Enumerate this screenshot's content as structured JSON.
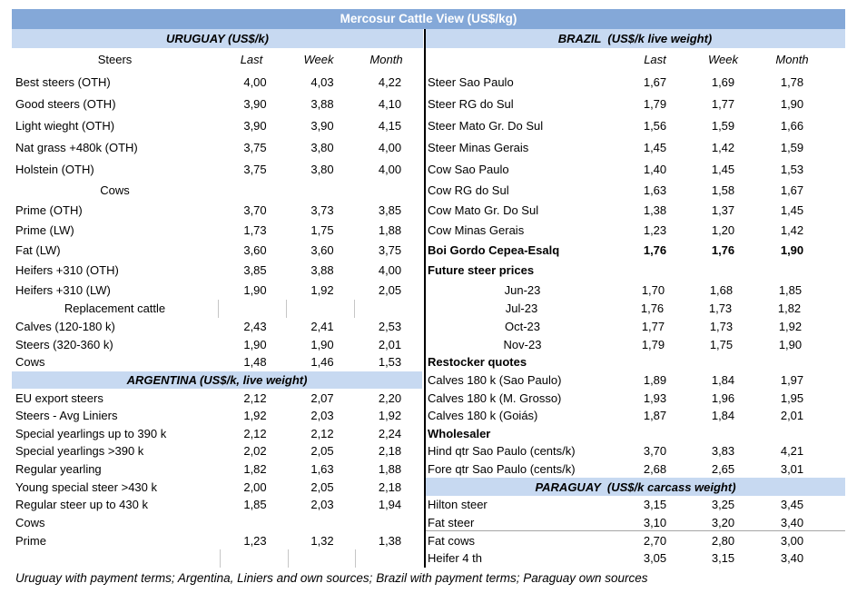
{
  "title": "Mercosur Cattle View (US$/kg)",
  "colors": {
    "title_bar_bg": "#84A8D8",
    "band_bg": "#C7D9F1",
    "divider": "#000000",
    "text": "#000000"
  },
  "left": {
    "header": "URUGUAY (US$/k)"
  },
  "right": {
    "header": "BRAZIL  (US$/k live weight)"
  },
  "col_headers": {
    "last": "Last",
    "week": "Week",
    "month": "Month"
  },
  "footer": "Uruguay with payment terms; Argentina, Liniers and own sources; Brazil with payment terms; Paraguay own sources",
  "rows": [
    {
      "left": {
        "label": "Steers",
        "align": "center",
        "head": true,
        "values": [
          "Last",
          "Week",
          "Month"
        ]
      },
      "right": {
        "label": "",
        "head": true,
        "values": [
          "Last",
          "Week",
          "Month"
        ]
      }
    },
    {
      "left": {
        "label": "Best steers (OTH)",
        "values": [
          "4,00",
          "4,03",
          "4,22"
        ]
      },
      "right": {
        "label": "Steer Sao Paulo",
        "values": [
          "1,67",
          "1,69",
          "1,78"
        ]
      }
    },
    {
      "left": {
        "label": "Good steers (OTH)",
        "values": [
          "3,90",
          "3,88",
          "4,10"
        ]
      },
      "right": {
        "label": "Steer RG do Sul",
        "values": [
          "1,79",
          "1,77",
          "1,90"
        ]
      }
    },
    {
      "left": {
        "label": "Light wieght (OTH)",
        "values": [
          "3,90",
          "3,90",
          "4,15"
        ]
      },
      "right": {
        "label": "Steer Mato Gr. Do Sul",
        "values": [
          "1,56",
          "1,59",
          "1,66"
        ]
      }
    },
    {
      "left": {
        "label": "Nat grass +480k (OTH)",
        "values": [
          "3,75",
          "3,80",
          "4,00"
        ]
      },
      "right": {
        "label": "Steer Minas Gerais",
        "values": [
          "1,45",
          "1,42",
          "1,59"
        ]
      }
    },
    {
      "left": {
        "label": "Holstein (OTH)",
        "values": [
          "3,75",
          "3,80",
          "4,00"
        ]
      },
      "right": {
        "label": "Cow Sao Paulo",
        "values": [
          "1,40",
          "1,45",
          "1,53"
        ]
      }
    },
    {
      "left": {
        "label": "Cows",
        "align": "center",
        "values": [
          "",
          "",
          ""
        ]
      },
      "right": {
        "label": "Cow RG do Sul",
        "values": [
          "1,63",
          "1,58",
          "1,67"
        ]
      }
    },
    {
      "left": {
        "label": "Prime (OTH)",
        "values": [
          "3,70",
          "3,73",
          "3,85"
        ]
      },
      "right": {
        "label": "Cow Mato Gr. Do Sul",
        "values": [
          "1,38",
          "1,37",
          "1,45"
        ]
      }
    },
    {
      "left": {
        "label": "Prime (LW)",
        "values": [
          "1,73",
          "1,75",
          "1,88"
        ]
      },
      "right": {
        "label": "Cow Minas Gerais",
        "values": [
          "1,23",
          "1,20",
          "1,42"
        ]
      }
    },
    {
      "left": {
        "label": "Fat (LW)",
        "values": [
          "3,60",
          "3,60",
          "3,75"
        ]
      },
      "right": {
        "label": "Boi Gordo Cepea-Esalq",
        "bold": true,
        "values": [
          "1,76",
          "1,76",
          "1,90"
        ]
      }
    },
    {
      "left": {
        "label": "Heifers +310 (OTH)",
        "values": [
          "3,85",
          "3,88",
          "4,00"
        ]
      },
      "right": {
        "label": "Future steer prices",
        "bold": true,
        "values": [
          "",
          "",
          ""
        ]
      }
    },
    {
      "left": {
        "label": "Heifers +310 (LW)",
        "values": [
          "1,90",
          "1,92",
          "2,05"
        ]
      },
      "right": {
        "label": "Jun-23",
        "align": "center",
        "values": [
          "1,70",
          "1,68",
          "1,85"
        ]
      }
    },
    {
      "left": {
        "label": "Replacement cattle",
        "align": "center",
        "ticks": true,
        "values": [
          "",
          "",
          ""
        ]
      },
      "right": {
        "label": "Jul-23",
        "align": "center",
        "values": [
          "1,76",
          "1,73",
          "1,82"
        ]
      }
    },
    {
      "left": {
        "label": "Calves (120-180 k)",
        "values": [
          "2,43",
          "2,41",
          "2,53"
        ]
      },
      "right": {
        "label": "Oct-23",
        "align": "center",
        "values": [
          "1,77",
          "1,73",
          "1,92"
        ]
      }
    },
    {
      "left": {
        "label": "Steers (320-360 k)",
        "values": [
          "1,90",
          "1,90",
          "2,01"
        ]
      },
      "right": {
        "label": "Nov-23",
        "align": "center",
        "values": [
          "1,79",
          "1,75",
          "1,90"
        ]
      }
    },
    {
      "left": {
        "label": "Cows",
        "values": [
          "1,48",
          "1,46",
          "1,53"
        ]
      },
      "right": {
        "label": "Restocker quotes",
        "bold": true,
        "values": [
          "",
          "",
          ""
        ]
      }
    },
    {
      "left": {
        "band": "ARGENTINA (US$/k, live weight)"
      },
      "right": {
        "label": "Calves 180 k (Sao Paulo)",
        "values": [
          "1,89",
          "1,84",
          "1,97"
        ]
      }
    },
    {
      "left": {
        "label": "EU export steers",
        "values": [
          "2,12",
          "2,07",
          "2,20"
        ]
      },
      "right": {
        "label": "Calves 180 k (M. Grosso)",
        "values": [
          "1,93",
          "1,96",
          "1,95"
        ]
      }
    },
    {
      "left": {
        "label": "Steers - Avg Liniers",
        "values": [
          "1,92",
          "2,03",
          "1,92"
        ]
      },
      "right": {
        "label": "Calves 180 k (Goiás)",
        "values": [
          "1,87",
          "1,84",
          "2,01"
        ]
      }
    },
    {
      "left": {
        "label": "Special yearlings up to 390 k",
        "values": [
          "2,12",
          "2,12",
          "2,24"
        ]
      },
      "right": {
        "label": "Wholesaler",
        "bold": true,
        "values": [
          "",
          "",
          ""
        ]
      }
    },
    {
      "left": {
        "label": "Special yearlings >390 k",
        "values": [
          "2,02",
          "2,05",
          "2,18"
        ]
      },
      "right": {
        "label": "Hind qtr Sao Paulo (cents/k)",
        "values": [
          "3,70",
          "3,83",
          "4,21"
        ]
      }
    },
    {
      "left": {
        "label": "Regular yearling",
        "values": [
          "1,82",
          "1,63",
          "1,88"
        ]
      },
      "right": {
        "label": "Fore qtr Sao Paulo (cents/k)",
        "values": [
          "2,68",
          "2,65",
          "3,01"
        ]
      }
    },
    {
      "left": {
        "label": "Young special steer >430 k",
        "values": [
          "2,00",
          "2,05",
          "2,18"
        ]
      },
      "right": {
        "band": "PARAGUAY  (US$/k carcass weight)"
      }
    },
    {
      "left": {
        "label": "Regular steer up to 430 k",
        "values": [
          "1,85",
          "2,03",
          "1,94"
        ]
      },
      "right": {
        "label": "Hilton steer",
        "values": [
          "3,15",
          "3,25",
          "3,45"
        ]
      }
    },
    {
      "left": {
        "label": "Cows",
        "values": [
          "",
          "",
          ""
        ]
      },
      "right": {
        "label": "Fat steer",
        "uline": true,
        "values": [
          "3,10",
          "3,20",
          "3,40"
        ]
      }
    },
    {
      "left": {
        "label": "Prime",
        "values": [
          "1,23",
          "1,32",
          "1,38"
        ]
      },
      "right": {
        "label": "Fat cows",
        "values": [
          "2,70",
          "2,80",
          "3,00"
        ]
      }
    },
    {
      "left": {
        "label": "",
        "ticks": true,
        "values": [
          "",
          "",
          ""
        ]
      },
      "right": {
        "label": "Heifer 4 th",
        "values": [
          "3,05",
          "3,15",
          "3,40"
        ]
      }
    }
  ]
}
